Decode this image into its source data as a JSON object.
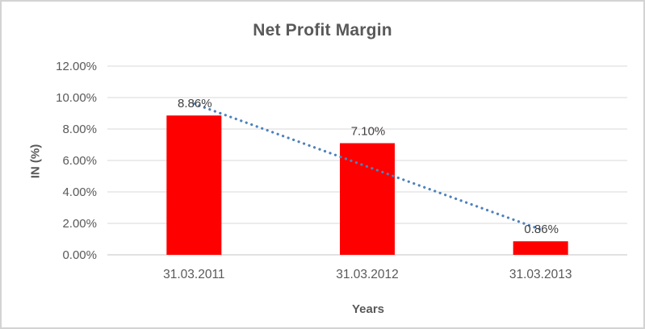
{
  "window": {
    "background": "#ffffff",
    "border_color": "#d3d3d3"
  },
  "chart_data": {
    "type": "bar",
    "title": "Net Profit Margin",
    "xlabel": "Years",
    "ylabel": "IN (%)",
    "categories": [
      "31.03.2011",
      "31.03.2012",
      "31.03.2013"
    ],
    "series": [
      {
        "name": "Net Profit Margin",
        "values": [
          8.86,
          7.1,
          0.86
        ],
        "color": "#ff0000"
      }
    ],
    "data_labels": [
      "8.86%",
      "7.10%",
      "0.86%"
    ],
    "y_ticks": [
      {
        "value": 0,
        "label": "0.00%"
      },
      {
        "value": 2,
        "label": "2.00%"
      },
      {
        "value": 4,
        "label": "4.00%"
      },
      {
        "value": 6,
        "label": "6.00%"
      },
      {
        "value": 8,
        "label": "8.00%"
      },
      {
        "value": 10,
        "label": "10.00%"
      },
      {
        "value": 12,
        "label": "12.00%"
      }
    ],
    "ylim": [
      0,
      12
    ],
    "grid": true,
    "legend": "none",
    "trendline": {
      "type": "linear",
      "style": "dotted",
      "color": "#4e81bd",
      "start_value": 9.61,
      "end_value": 1.61
    },
    "colors": {
      "grid": "#d9d9d9",
      "axis_line": "#c3c3c3",
      "tick_text": "#595959",
      "data_label_text": "#404040",
      "title_text": "#595959"
    }
  }
}
